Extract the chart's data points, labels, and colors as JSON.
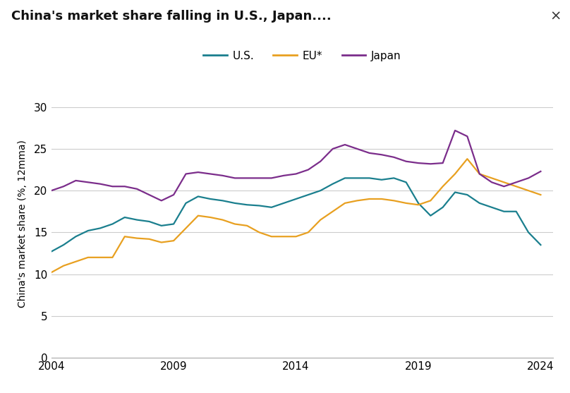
{
  "title": "China's market share falling in U.S., Japan....",
  "ylabel": "China's market share (%, 12mma)",
  "xlim": [
    2004,
    2024.5
  ],
  "ylim": [
    0,
    32
  ],
  "yticks": [
    0,
    5,
    10,
    15,
    20,
    25,
    30
  ],
  "xticks": [
    2004,
    2009,
    2014,
    2019,
    2024
  ],
  "bg_color": "#ffffff",
  "grid_color": "#cccccc",
  "us_color": "#1a7f8e",
  "eu_color": "#e8a020",
  "japan_color": "#7b2d8b",
  "us_label": "U.S.",
  "eu_label": "EU*",
  "japan_label": "Japan",
  "title_fontsize": 13,
  "tick_fontsize": 11,
  "ylabel_fontsize": 10,
  "legend_fontsize": 11,
  "linewidth": 1.6,
  "us_data": [
    [
      2004.0,
      12.7
    ],
    [
      2004.5,
      13.5
    ],
    [
      2005.0,
      14.5
    ],
    [
      2005.5,
      15.2
    ],
    [
      2006.0,
      15.5
    ],
    [
      2006.5,
      16.0
    ],
    [
      2007.0,
      16.8
    ],
    [
      2007.5,
      16.5
    ],
    [
      2008.0,
      16.3
    ],
    [
      2008.5,
      15.8
    ],
    [
      2009.0,
      16.0
    ],
    [
      2009.5,
      18.5
    ],
    [
      2010.0,
      19.3
    ],
    [
      2010.5,
      19.0
    ],
    [
      2011.0,
      18.8
    ],
    [
      2011.5,
      18.5
    ],
    [
      2012.0,
      18.3
    ],
    [
      2012.5,
      18.2
    ],
    [
      2013.0,
      18.0
    ],
    [
      2013.5,
      18.5
    ],
    [
      2014.0,
      19.0
    ],
    [
      2014.5,
      19.5
    ],
    [
      2015.0,
      20.0
    ],
    [
      2015.5,
      20.8
    ],
    [
      2016.0,
      21.5
    ],
    [
      2016.5,
      21.5
    ],
    [
      2017.0,
      21.5
    ],
    [
      2017.5,
      21.3
    ],
    [
      2018.0,
      21.5
    ],
    [
      2018.5,
      21.0
    ],
    [
      2019.0,
      18.5
    ],
    [
      2019.5,
      17.0
    ],
    [
      2020.0,
      18.0
    ],
    [
      2020.5,
      19.8
    ],
    [
      2021.0,
      19.5
    ],
    [
      2021.5,
      18.5
    ],
    [
      2022.0,
      18.0
    ],
    [
      2022.5,
      17.5
    ],
    [
      2023.0,
      17.5
    ],
    [
      2023.5,
      15.0
    ],
    [
      2024.0,
      13.5
    ]
  ],
  "eu_data": [
    [
      2004.0,
      10.2
    ],
    [
      2004.5,
      11.0
    ],
    [
      2005.0,
      11.5
    ],
    [
      2005.5,
      12.0
    ],
    [
      2006.0,
      12.0
    ],
    [
      2006.5,
      12.0
    ],
    [
      2007.0,
      14.5
    ],
    [
      2007.5,
      14.3
    ],
    [
      2008.0,
      14.2
    ],
    [
      2008.5,
      13.8
    ],
    [
      2009.0,
      14.0
    ],
    [
      2009.5,
      15.5
    ],
    [
      2010.0,
      17.0
    ],
    [
      2010.5,
      16.8
    ],
    [
      2011.0,
      16.5
    ],
    [
      2011.5,
      16.0
    ],
    [
      2012.0,
      15.8
    ],
    [
      2012.5,
      15.0
    ],
    [
      2013.0,
      14.5
    ],
    [
      2013.5,
      14.5
    ],
    [
      2014.0,
      14.5
    ],
    [
      2014.5,
      15.0
    ],
    [
      2015.0,
      16.5
    ],
    [
      2015.5,
      17.5
    ],
    [
      2016.0,
      18.5
    ],
    [
      2016.5,
      18.8
    ],
    [
      2017.0,
      19.0
    ],
    [
      2017.5,
      19.0
    ],
    [
      2018.0,
      18.8
    ],
    [
      2018.5,
      18.5
    ],
    [
      2019.0,
      18.3
    ],
    [
      2019.5,
      18.8
    ],
    [
      2020.0,
      20.5
    ],
    [
      2020.5,
      22.0
    ],
    [
      2021.0,
      23.8
    ],
    [
      2021.5,
      22.0
    ],
    [
      2022.0,
      21.5
    ],
    [
      2022.5,
      21.0
    ],
    [
      2023.0,
      20.5
    ],
    [
      2023.5,
      20.0
    ],
    [
      2024.0,
      19.5
    ]
  ],
  "japan_data": [
    [
      2004.0,
      20.0
    ],
    [
      2004.5,
      20.5
    ],
    [
      2005.0,
      21.2
    ],
    [
      2005.5,
      21.0
    ],
    [
      2006.0,
      20.8
    ],
    [
      2006.5,
      20.5
    ],
    [
      2007.0,
      20.5
    ],
    [
      2007.5,
      20.2
    ],
    [
      2008.0,
      19.5
    ],
    [
      2008.5,
      18.8
    ],
    [
      2009.0,
      19.5
    ],
    [
      2009.5,
      22.0
    ],
    [
      2010.0,
      22.2
    ],
    [
      2010.5,
      22.0
    ],
    [
      2011.0,
      21.8
    ],
    [
      2011.5,
      21.5
    ],
    [
      2012.0,
      21.5
    ],
    [
      2012.5,
      21.5
    ],
    [
      2013.0,
      21.5
    ],
    [
      2013.5,
      21.8
    ],
    [
      2014.0,
      22.0
    ],
    [
      2014.5,
      22.5
    ],
    [
      2015.0,
      23.5
    ],
    [
      2015.5,
      25.0
    ],
    [
      2016.0,
      25.5
    ],
    [
      2016.5,
      25.0
    ],
    [
      2017.0,
      24.5
    ],
    [
      2017.5,
      24.3
    ],
    [
      2018.0,
      24.0
    ],
    [
      2018.5,
      23.5
    ],
    [
      2019.0,
      23.3
    ],
    [
      2019.5,
      23.2
    ],
    [
      2020.0,
      23.3
    ],
    [
      2020.5,
      27.2
    ],
    [
      2021.0,
      26.5
    ],
    [
      2021.5,
      22.0
    ],
    [
      2022.0,
      21.0
    ],
    [
      2022.5,
      20.5
    ],
    [
      2023.0,
      21.0
    ],
    [
      2023.5,
      21.5
    ],
    [
      2024.0,
      22.3
    ]
  ]
}
